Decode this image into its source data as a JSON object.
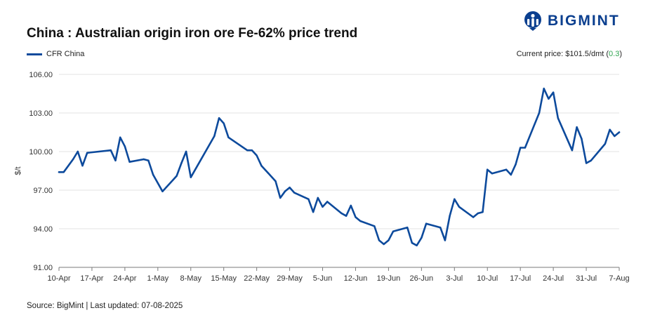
{
  "title": "China : Australian origin iron ore Fe-62% price trend",
  "logo": {
    "text": "BIGMINT",
    "icon": "bigmint-logo-icon"
  },
  "current_price": {
    "label": "Current price: $101.5/dmt",
    "change_open": "(",
    "change": "0.3",
    "change_close": ")"
  },
  "footer": "Source: BigMint | Last updated: 07-08-2025",
  "colors": {
    "line": "#0d4a9c",
    "logo": "#0b3f8f",
    "positive": "#2ea44f",
    "grid": "#e3e3e3"
  },
  "chart_data": {
    "type": "line",
    "title": "China : Australian origin iron ore Fe-62% price trend",
    "xlabel": "",
    "ylabel": "$/t",
    "ylim": [
      91,
      106
    ],
    "yticks": [
      "91.00",
      "94.00",
      "97.00",
      "100.00",
      "103.00",
      "106.00"
    ],
    "ytick_values": [
      91,
      94,
      97,
      100,
      103,
      106
    ],
    "xticks": [
      "10-Apr",
      "17-Apr",
      "24-Apr",
      "1-May",
      "8-May",
      "15-May",
      "22-May",
      "29-May",
      "5-Jun",
      "12-Jun",
      "19-Jun",
      "26-Jun",
      "3-Jul",
      "10-Jul",
      "17-Jul",
      "24-Jul",
      "31-Jul",
      "7-Aug"
    ],
    "legend": "top-left",
    "grid": true,
    "series": [
      {
        "name": "CFR China",
        "points": [
          [
            0,
            98.4
          ],
          [
            1,
            98.4
          ],
          [
            3,
            99.4
          ],
          [
            4,
            100.0
          ],
          [
            5,
            98.9
          ],
          [
            6,
            99.9
          ],
          [
            11,
            100.1
          ],
          [
            12,
            99.3
          ],
          [
            13,
            101.1
          ],
          [
            14,
            100.4
          ],
          [
            15,
            99.2
          ],
          [
            18,
            99.4
          ],
          [
            19,
            99.3
          ],
          [
            20,
            98.2
          ],
          [
            22,
            96.9
          ],
          [
            25,
            98.1
          ],
          [
            26,
            99.1
          ],
          [
            27,
            100.0
          ],
          [
            28,
            98.0
          ],
          [
            33,
            101.2
          ],
          [
            34,
            102.6
          ],
          [
            35,
            102.2
          ],
          [
            36,
            101.1
          ],
          [
            40,
            100.1
          ],
          [
            41,
            100.1
          ],
          [
            42,
            99.7
          ],
          [
            43,
            98.9
          ],
          [
            46,
            97.7
          ],
          [
            47,
            96.4
          ],
          [
            48,
            96.9
          ],
          [
            49,
            97.2
          ],
          [
            50,
            96.8
          ],
          [
            53,
            96.3
          ],
          [
            54,
            95.3
          ],
          [
            55,
            96.4
          ],
          [
            56,
            95.7
          ],
          [
            57,
            96.1
          ],
          [
            60,
            95.2
          ],
          [
            61,
            95.0
          ],
          [
            62,
            95.8
          ],
          [
            63,
            94.9
          ],
          [
            64,
            94.6
          ],
          [
            67,
            94.2
          ],
          [
            68,
            93.1
          ],
          [
            69,
            92.8
          ],
          [
            70,
            93.1
          ],
          [
            71,
            93.8
          ],
          [
            74,
            94.1
          ],
          [
            75,
            92.9
          ],
          [
            76,
            92.7
          ],
          [
            77,
            93.3
          ],
          [
            78,
            94.4
          ],
          [
            81,
            94.1
          ],
          [
            82,
            93.1
          ],
          [
            83,
            95.0
          ],
          [
            84,
            96.3
          ],
          [
            85,
            95.7
          ],
          [
            88,
            94.9
          ],
          [
            89,
            95.2
          ],
          [
            90,
            95.3
          ],
          [
            91,
            98.6
          ],
          [
            92,
            98.3
          ],
          [
            95,
            98.6
          ],
          [
            96,
            98.2
          ],
          [
            97,
            99.0
          ],
          [
            98,
            100.3
          ],
          [
            99,
            100.3
          ],
          [
            102,
            103.0
          ],
          [
            103,
            104.9
          ],
          [
            104,
            104.1
          ],
          [
            105,
            104.6
          ],
          [
            106,
            102.6
          ],
          [
            109,
            100.1
          ],
          [
            110,
            101.9
          ],
          [
            111,
            101.0
          ],
          [
            112,
            99.1
          ],
          [
            113,
            99.3
          ],
          [
            116,
            100.6
          ],
          [
            117,
            101.7
          ],
          [
            118,
            101.2
          ],
          [
            119,
            101.5
          ]
        ]
      }
    ]
  }
}
